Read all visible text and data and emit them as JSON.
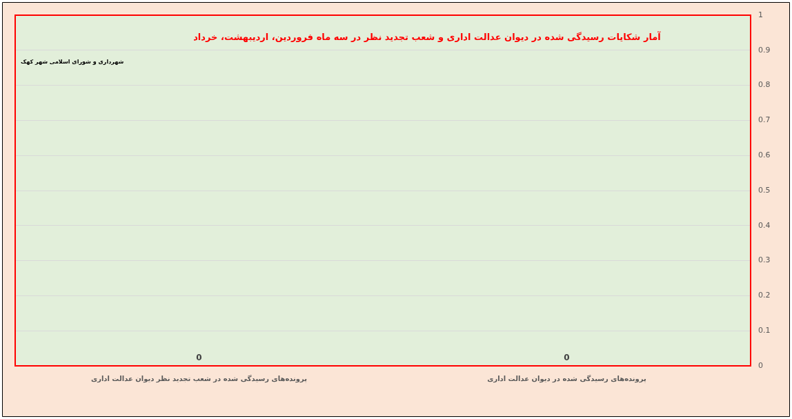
{
  "chart_data": {
    "type": "bar",
    "title": "آمار شکایات رسیدگی شده در دیوان عدالت اداری و شعب تجدید نظر در سه ماه فروردین، اردیبهشت، خرداد",
    "categories": [
      "پرونده‌های رسیدگی شده در شعب تجدید نظر دیوان عدالت اداری",
      "پرونده‌های رسیدگی شده در دیوان عدالت اداری"
    ],
    "values": [
      0,
      0
    ],
    "ylim": [
      0,
      1
    ],
    "yticks": [
      0,
      0.1,
      0.2,
      0.3,
      0.4,
      0.5,
      0.6,
      0.7,
      0.8,
      0.9,
      1
    ],
    "grid": "y",
    "data_labels": true,
    "annotations": [
      "شهرداری و شورای اسلامی شهر کهک"
    ]
  }
}
